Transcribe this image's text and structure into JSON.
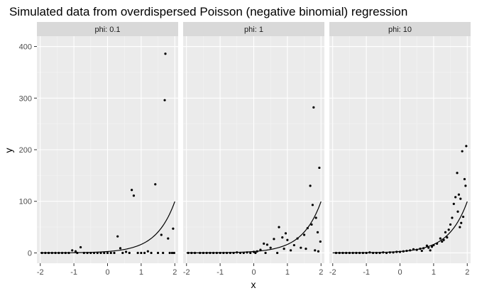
{
  "chart_data": {
    "type": "scatter",
    "title": "Simulated data from overdispersed Poisson (negative binomial) regression",
    "xlabel": "x",
    "ylabel": "y",
    "xlim": [
      -2.1,
      2.1
    ],
    "ylim": [
      -20,
      420
    ],
    "x_ticks": [
      -2,
      -1,
      0,
      1,
      2
    ],
    "y_ticks": [
      0,
      100,
      200,
      300,
      400
    ],
    "grid": true,
    "fitted_curve": {
      "a": 1,
      "b": 1.8
    },
    "facets": [
      {
        "label": "phi: 0.1",
        "points": [
          {
            "x": 1.72,
            "y": 386
          },
          {
            "x": 1.7,
            "y": 296
          },
          {
            "x": 0.72,
            "y": 122
          },
          {
            "x": 0.78,
            "y": 111
          },
          {
            "x": 1.42,
            "y": 133
          },
          {
            "x": 1.95,
            "y": 47
          },
          {
            "x": 1.6,
            "y": 35
          },
          {
            "x": 0.3,
            "y": 32
          },
          {
            "x": 1.8,
            "y": 28
          },
          {
            "x": 0.38,
            "y": 9
          },
          {
            "x": -0.8,
            "y": 11
          },
          {
            "x": -1.05,
            "y": 5
          },
          {
            "x": -0.95,
            "y": 3
          },
          {
            "x": 0.55,
            "y": 2
          },
          {
            "x": 1.2,
            "y": 3
          },
          {
            "x": -1.95,
            "y": 0
          },
          {
            "x": -1.85,
            "y": 0
          },
          {
            "x": -1.75,
            "y": 0
          },
          {
            "x": -1.65,
            "y": 0
          },
          {
            "x": -1.55,
            "y": 0
          },
          {
            "x": -1.45,
            "y": 0
          },
          {
            "x": -1.35,
            "y": 0
          },
          {
            "x": -1.25,
            "y": 0
          },
          {
            "x": -1.15,
            "y": 0
          },
          {
            "x": -0.9,
            "y": 0
          },
          {
            "x": -0.7,
            "y": 0
          },
          {
            "x": -0.6,
            "y": 0
          },
          {
            "x": -0.5,
            "y": 0
          },
          {
            "x": -0.4,
            "y": 0
          },
          {
            "x": -0.3,
            "y": 0
          },
          {
            "x": -0.2,
            "y": 0
          },
          {
            "x": -0.1,
            "y": 0
          },
          {
            "x": 0.0,
            "y": 0
          },
          {
            "x": 0.1,
            "y": 0
          },
          {
            "x": 0.2,
            "y": 0
          },
          {
            "x": 0.45,
            "y": 0
          },
          {
            "x": 0.65,
            "y": 0
          },
          {
            "x": 0.9,
            "y": 0
          },
          {
            "x": 1.0,
            "y": 0
          },
          {
            "x": 1.1,
            "y": 0
          },
          {
            "x": 1.3,
            "y": 0
          },
          {
            "x": 1.5,
            "y": 0
          },
          {
            "x": 1.65,
            "y": 0
          },
          {
            "x": 1.85,
            "y": 0
          },
          {
            "x": 1.92,
            "y": 0
          },
          {
            "x": 1.98,
            "y": 0
          }
        ]
      },
      {
        "label": "phi: 1",
        "points": [
          {
            "x": 1.78,
            "y": 282
          },
          {
            "x": 1.95,
            "y": 165
          },
          {
            "x": 1.68,
            "y": 130
          },
          {
            "x": 1.75,
            "y": 93
          },
          {
            "x": 1.85,
            "y": 68
          },
          {
            "x": 0.75,
            "y": 50
          },
          {
            "x": 1.6,
            "y": 48
          },
          {
            "x": 1.72,
            "y": 55
          },
          {
            "x": 1.9,
            "y": 40
          },
          {
            "x": 0.85,
            "y": 30
          },
          {
            "x": 1.5,
            "y": 35
          },
          {
            "x": 0.95,
            "y": 38
          },
          {
            "x": 1.0,
            "y": 25
          },
          {
            "x": 1.3,
            "y": 28
          },
          {
            "x": 0.6,
            "y": 27
          },
          {
            "x": 0.4,
            "y": 16
          },
          {
            "x": 0.3,
            "y": 18
          },
          {
            "x": 1.2,
            "y": 15
          },
          {
            "x": 1.4,
            "y": 10
          },
          {
            "x": 0.5,
            "y": 10
          },
          {
            "x": 0.9,
            "y": 8
          },
          {
            "x": 1.1,
            "y": 5
          },
          {
            "x": 1.55,
            "y": 8
          },
          {
            "x": 1.98,
            "y": 22
          },
          {
            "x": 1.82,
            "y": 5
          },
          {
            "x": 1.92,
            "y": 3
          },
          {
            "x": 0.1,
            "y": 3
          },
          {
            "x": 0.2,
            "y": 6
          },
          {
            "x": 0.0,
            "y": 2
          },
          {
            "x": -0.2,
            "y": 1
          },
          {
            "x": -0.5,
            "y": 1
          },
          {
            "x": -1.95,
            "y": 0
          },
          {
            "x": -1.85,
            "y": 0
          },
          {
            "x": -1.75,
            "y": 0
          },
          {
            "x": -1.6,
            "y": 0
          },
          {
            "x": -1.5,
            "y": 0
          },
          {
            "x": -1.4,
            "y": 0
          },
          {
            "x": -1.3,
            "y": 0
          },
          {
            "x": -1.2,
            "y": 0
          },
          {
            "x": -1.1,
            "y": 0
          },
          {
            "x": -1.0,
            "y": 0
          },
          {
            "x": -0.9,
            "y": 0
          },
          {
            "x": -0.8,
            "y": 0
          },
          {
            "x": -0.7,
            "y": 0
          },
          {
            "x": -0.6,
            "y": 0
          },
          {
            "x": -0.4,
            "y": 0
          },
          {
            "x": -0.3,
            "y": 0
          },
          {
            "x": -0.1,
            "y": 0
          },
          {
            "x": 0.05,
            "y": 0
          },
          {
            "x": 0.35,
            "y": 0
          },
          {
            "x": 0.7,
            "y": 0
          }
        ]
      },
      {
        "label": "phi: 10",
        "points": [
          {
            "x": 1.97,
            "y": 207
          },
          {
            "x": 1.85,
            "y": 197
          },
          {
            "x": 1.7,
            "y": 155
          },
          {
            "x": 1.92,
            "y": 143
          },
          {
            "x": 1.95,
            "y": 130
          },
          {
            "x": 1.75,
            "y": 113
          },
          {
            "x": 1.65,
            "y": 108
          },
          {
            "x": 1.8,
            "y": 105
          },
          {
            "x": 1.6,
            "y": 95
          },
          {
            "x": 1.72,
            "y": 80
          },
          {
            "x": 1.88,
            "y": 70
          },
          {
            "x": 1.55,
            "y": 68
          },
          {
            "x": 1.82,
            "y": 58
          },
          {
            "x": 1.78,
            "y": 50
          },
          {
            "x": 1.5,
            "y": 55
          },
          {
            "x": 1.45,
            "y": 45
          },
          {
            "x": 1.35,
            "y": 40
          },
          {
            "x": 1.4,
            "y": 30
          },
          {
            "x": 1.2,
            "y": 28
          },
          {
            "x": 1.25,
            "y": 22
          },
          {
            "x": 1.3,
            "y": 25
          },
          {
            "x": 1.1,
            "y": 18
          },
          {
            "x": 1.0,
            "y": 15
          },
          {
            "x": 0.95,
            "y": 12
          },
          {
            "x": 0.8,
            "y": 14
          },
          {
            "x": 0.85,
            "y": 10
          },
          {
            "x": 0.7,
            "y": 9
          },
          {
            "x": 0.6,
            "y": 8
          },
          {
            "x": 0.5,
            "y": 6
          },
          {
            "x": 0.4,
            "y": 7
          },
          {
            "x": 0.3,
            "y": 5
          },
          {
            "x": 0.2,
            "y": 4
          },
          {
            "x": 0.1,
            "y": 3
          },
          {
            "x": 0.0,
            "y": 2
          },
          {
            "x": -0.1,
            "y": 2
          },
          {
            "x": -0.2,
            "y": 1
          },
          {
            "x": -0.3,
            "y": 1
          },
          {
            "x": -0.5,
            "y": 1
          },
          {
            "x": -0.7,
            "y": 0
          },
          {
            "x": -0.9,
            "y": 1
          },
          {
            "x": -1.1,
            "y": 0
          },
          {
            "x": -1.3,
            "y": 0
          },
          {
            "x": -1.5,
            "y": 0
          },
          {
            "x": -1.7,
            "y": 0
          },
          {
            "x": -1.9,
            "y": 0
          },
          {
            "x": -0.4,
            "y": 0
          },
          {
            "x": -0.6,
            "y": 0
          },
          {
            "x": -0.8,
            "y": 0
          },
          {
            "x": -1.0,
            "y": 0
          },
          {
            "x": -1.2,
            "y": 0
          },
          {
            "x": -1.4,
            "y": 0
          },
          {
            "x": -1.6,
            "y": 0
          },
          {
            "x": -1.8,
            "y": 0
          },
          {
            "x": 0.65,
            "y": 4
          },
          {
            "x": 0.9,
            "y": 5
          }
        ]
      }
    ]
  }
}
